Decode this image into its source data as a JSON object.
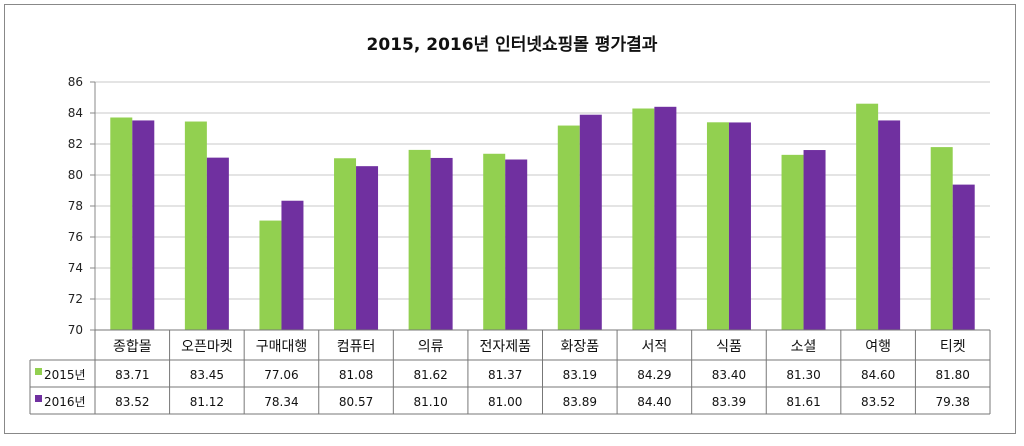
{
  "chart_data": {
    "type": "bar",
    "title": "2015, 2016년 인터넷쇼핑몰 평가결과",
    "categories": [
      "종합몰",
      "오픈마켓",
      "구매대행",
      "컴퓨터",
      "의류",
      "전자제품",
      "화장품",
      "서적",
      "식품",
      "소셜",
      "여행",
      "티켓"
    ],
    "series": [
      {
        "name": "2015년",
        "color": "#92d050",
        "values": [
          83.71,
          83.45,
          77.06,
          81.08,
          81.62,
          81.37,
          83.19,
          84.29,
          83.4,
          81.3,
          84.6,
          81.8
        ]
      },
      {
        "name": "2016년",
        "color": "#7030a0",
        "values": [
          83.52,
          81.12,
          78.34,
          80.57,
          81.1,
          81.0,
          83.89,
          84.4,
          83.39,
          81.61,
          83.52,
          79.38
        ]
      }
    ],
    "yticks": [
      "70",
      "72",
      "74",
      "76",
      "78",
      "80",
      "82",
      "84",
      "86"
    ],
    "ylim": [
      70,
      86
    ],
    "grid": true,
    "legend": "data-table"
  }
}
